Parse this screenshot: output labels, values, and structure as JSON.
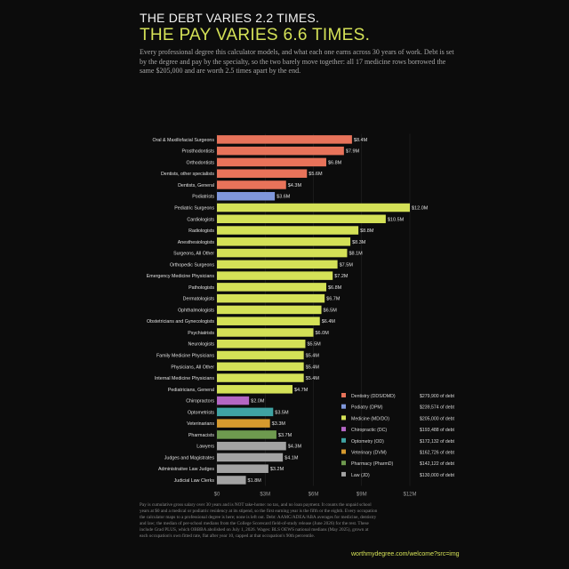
{
  "header": {
    "title_line1": "THE DEBT VARIES 2.2 TIMES.",
    "title_line2": "THE PAY VARIES 6.6 TIMES.",
    "subtitle": "Every professional degree this calculator models, and what each one earns across 30 years of work. Debt is set by the degree and pay by the specialty, so the two barely move together: all 17 medicine rows borrowed the same $205,000 and are worth 2.5 times apart by the end."
  },
  "footnote": "Pay is cumulative gross salary over 30 years and is NOT take-home: no tax, and no loan payment. It counts the unpaid school years at $0 and a medical or podiatric residency at its stipend, so the first earning year is the fifth or the eighth. Every occupation the calculator maps to a professional degree is here; none is left out. Debt: AAMC/ADEA/ABA averages for medicine, dentistry and law; the median of per-school medians from the College Scorecard field-of-study release (June 2026) for the rest. These include Grad PLUS, which OBBBA abolished on July 1, 2026. Wages: BLS OEWS national medians (May 2025), grown at each occupation's own fitted rate, flat after year 10, capped at that occupation's 90th percentile.",
  "url": "worthmydegree.com/welcome?src=img",
  "colors": {
    "dentistry": "#e8735a",
    "podiatry": "#7f97db",
    "medicine": "#d4e157",
    "chiropractic": "#b466c4",
    "optometry": "#3fa3a3",
    "veterinary": "#d69a2e",
    "pharmacy": "#6e9a4f",
    "law": "#a3a3a3"
  },
  "chart_data": {
    "type": "bar",
    "orientation": "horizontal",
    "xlim": [
      0,
      12
    ],
    "x_ticks": [
      "$0",
      "$3M",
      "$6M",
      "$9M",
      "$12M"
    ],
    "x_tick_values": [
      0,
      3,
      6,
      9,
      12
    ],
    "grid": true,
    "legend_position": "bottom-right",
    "legend": [
      {
        "group": "dentistry",
        "label": "Dentistry (DDS/DMD)",
        "debt": "$279,900 of debt"
      },
      {
        "group": "podiatry",
        "label": "Podiatry (DPM)",
        "debt": "$239,574 of debt"
      },
      {
        "group": "medicine",
        "label": "Medicine (MD/DO)",
        "debt": "$205,000 of debt"
      },
      {
        "group": "chiropractic",
        "label": "Chiropractic (DC)",
        "debt": "$193,488 of debt"
      },
      {
        "group": "optometry",
        "label": "Optometry (OD)",
        "debt": "$172,132 of debt"
      },
      {
        "group": "veterinary",
        "label": "Veterinary (DVM)",
        "debt": "$162,726 of debt"
      },
      {
        "group": "pharmacy",
        "label": "Pharmacy (PharmD)",
        "debt": "$142,122 of debt"
      },
      {
        "group": "law",
        "label": "Law (JD)",
        "debt": "$130,000 of debt"
      }
    ],
    "rows": [
      {
        "label": "Oral & Maxillofacial Surgeons",
        "value": 8.4,
        "value_label": "$8.4M",
        "group": "dentistry"
      },
      {
        "label": "Prosthodontists",
        "value": 7.9,
        "value_label": "$7.9M",
        "group": "dentistry"
      },
      {
        "label": "Orthodontists",
        "value": 6.8,
        "value_label": "$6.8M",
        "group": "dentistry"
      },
      {
        "label": "Dentists, other specialists",
        "value": 5.6,
        "value_label": "$5.6M",
        "group": "dentistry"
      },
      {
        "label": "Dentists, General",
        "value": 4.3,
        "value_label": "$4.3M",
        "group": "dentistry"
      },
      {
        "label": "Podiatrists",
        "value": 3.6,
        "value_label": "$3.6M",
        "group": "podiatry"
      },
      {
        "label": "Pediatric Surgeons",
        "value": 12.0,
        "value_label": "$12.0M",
        "group": "medicine"
      },
      {
        "label": "Cardiologists",
        "value": 10.5,
        "value_label": "$10.5M",
        "group": "medicine"
      },
      {
        "label": "Radiologists",
        "value": 8.8,
        "value_label": "$8.8M",
        "group": "medicine"
      },
      {
        "label": "Anesthesiologists",
        "value": 8.3,
        "value_label": "$8.3M",
        "group": "medicine"
      },
      {
        "label": "Surgeons, All Other",
        "value": 8.1,
        "value_label": "$8.1M",
        "group": "medicine"
      },
      {
        "label": "Orthopedic Surgeons",
        "value": 7.5,
        "value_label": "$7.5M",
        "group": "medicine"
      },
      {
        "label": "Emergency Medicine Physicians",
        "value": 7.2,
        "value_label": "$7.2M",
        "group": "medicine"
      },
      {
        "label": "Pathologists",
        "value": 6.8,
        "value_label": "$6.8M",
        "group": "medicine"
      },
      {
        "label": "Dermatologists",
        "value": 6.7,
        "value_label": "$6.7M",
        "group": "medicine"
      },
      {
        "label": "Ophthalmologists",
        "value": 6.5,
        "value_label": "$6.5M",
        "group": "medicine"
      },
      {
        "label": "Obstetricians and Gynecologists",
        "value": 6.4,
        "value_label": "$6.4M",
        "group": "medicine"
      },
      {
        "label": "Psychiatrists",
        "value": 6.0,
        "value_label": "$6.0M",
        "group": "medicine"
      },
      {
        "label": "Neurologists",
        "value": 5.5,
        "value_label": "$5.5M",
        "group": "medicine"
      },
      {
        "label": "Family Medicine Physicians",
        "value": 5.4,
        "value_label": "$5.4M",
        "group": "medicine"
      },
      {
        "label": "Physicians, All Other",
        "value": 5.4,
        "value_label": "$5.4M",
        "group": "medicine"
      },
      {
        "label": "Internal Medicine Physicians",
        "value": 5.4,
        "value_label": "$5.4M",
        "group": "medicine"
      },
      {
        "label": "Pediatricians, General",
        "value": 4.7,
        "value_label": "$4.7M",
        "group": "medicine"
      },
      {
        "label": "Chiropractors",
        "value": 2.0,
        "value_label": "$2.0M",
        "group": "chiropractic"
      },
      {
        "label": "Optometrists",
        "value": 3.5,
        "value_label": "$3.5M",
        "group": "optometry"
      },
      {
        "label": "Veterinarians",
        "value": 3.3,
        "value_label": "$3.3M",
        "group": "veterinary"
      },
      {
        "label": "Pharmacists",
        "value": 3.7,
        "value_label": "$3.7M",
        "group": "pharmacy"
      },
      {
        "label": "Lawyers",
        "value": 4.3,
        "value_label": "$4.3M",
        "group": "law"
      },
      {
        "label": "Judges and Magistrates",
        "value": 4.1,
        "value_label": "$4.1M",
        "group": "law"
      },
      {
        "label": "Administrative Law Judges",
        "value": 3.2,
        "value_label": "$3.2M",
        "group": "law"
      },
      {
        "label": "Judicial Law Clerks",
        "value": 1.8,
        "value_label": "$1.8M",
        "group": "law"
      }
    ]
  }
}
